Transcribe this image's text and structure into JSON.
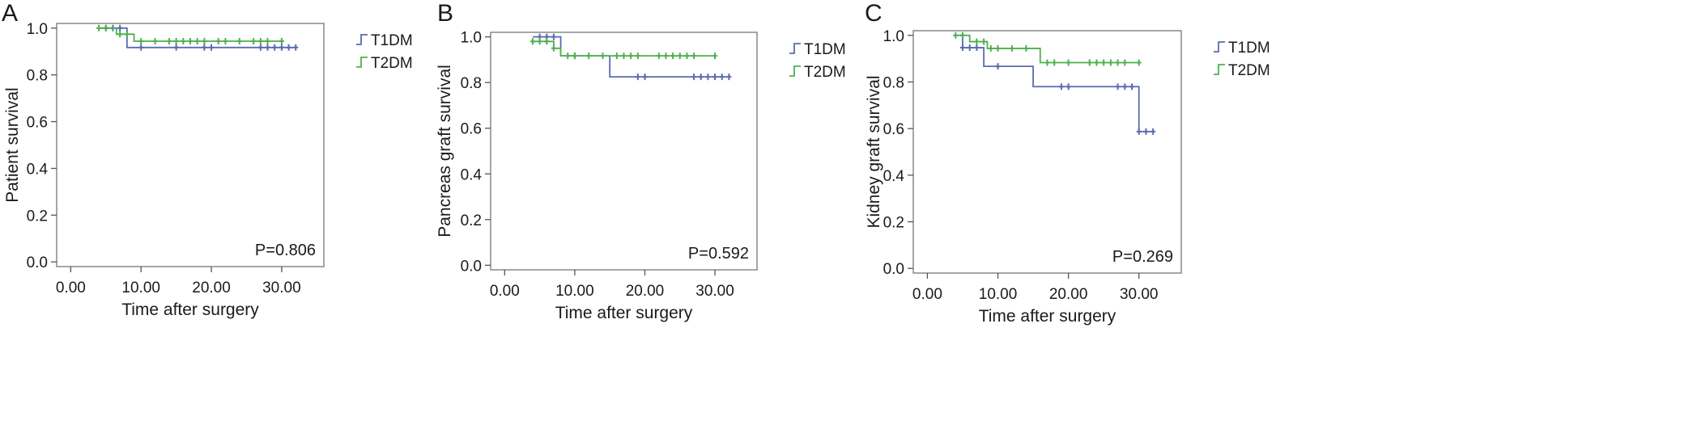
{
  "panels": [
    {
      "letter": "A",
      "ylabel": "Patient survival",
      "xlabel": "Time after surgery",
      "pvalue": "P=0.806",
      "xticks": [
        0,
        10,
        20,
        30
      ],
      "xtick_labels": [
        "0.00",
        "10.00",
        "20.00",
        "30.00"
      ],
      "yticks": [
        0,
        0.2,
        0.4,
        0.6,
        0.8,
        1.0
      ],
      "ytick_labels": [
        "0.0",
        "0.2",
        "0.4",
        "0.6",
        "0.8",
        "1.0"
      ],
      "legend": [
        "T1DM",
        "T2DM"
      ]
    },
    {
      "letter": "B",
      "ylabel": "Pancreas graft survival",
      "xlabel": "Time after surgery",
      "pvalue": "P=0.592",
      "xticks": [
        0,
        10,
        20,
        30
      ],
      "xtick_labels": [
        "0.00",
        "10.00",
        "20.00",
        "30.00"
      ],
      "yticks": [
        0,
        0.2,
        0.4,
        0.6,
        0.8,
        1.0
      ],
      "ytick_labels": [
        "0.0",
        "0.2",
        "0.4",
        "0.6",
        "0.8",
        "1.0"
      ],
      "legend": [
        "T1DM",
        "T2DM"
      ]
    },
    {
      "letter": "C",
      "ylabel": "Kidney graft survival",
      "xlabel": "Time after surgery",
      "pvalue": "P=0.269",
      "xticks": [
        0,
        10,
        20,
        30
      ],
      "xtick_labels": [
        "0.00",
        "10.00",
        "20.00",
        "30.00"
      ],
      "yticks": [
        0,
        0.2,
        0.4,
        0.6,
        0.8,
        1.0
      ],
      "ytick_labels": [
        "0.0",
        "0.2",
        "0.4",
        "0.6",
        "0.8",
        "1.0"
      ],
      "legend": [
        "T1DM",
        "T2DM"
      ]
    }
  ],
  "colors": {
    "T1DM": "#5a6bb0",
    "T2DM": "#4fb04f"
  },
  "chart_data": [
    {
      "type": "line",
      "title": "A",
      "xlabel": "Time after surgery",
      "ylabel": "Patient survival",
      "xlim": [
        -2,
        36
      ],
      "ylim": [
        -0.02,
        1.02
      ],
      "legend": "top-right",
      "series": [
        {
          "name": "T1DM",
          "steps": [
            [
              4,
              1.0
            ],
            [
              8,
              0.917
            ],
            [
              32,
              0.917
            ]
          ],
          "censored": [
            [
              5,
              1.0
            ],
            [
              6,
              1.0
            ],
            [
              7,
              1.0
            ],
            [
              10,
              0.917
            ],
            [
              15,
              0.917
            ],
            [
              19,
              0.917
            ],
            [
              20,
              0.917
            ],
            [
              27,
              0.917
            ],
            [
              28,
              0.917
            ],
            [
              29,
              0.917
            ],
            [
              30,
              0.917
            ],
            [
              31,
              0.917
            ],
            [
              32,
              0.917
            ]
          ]
        },
        {
          "name": "T2DM",
          "steps": [
            [
              4,
              1.0
            ],
            [
              6.5,
              0.974
            ],
            [
              9,
              0.944
            ],
            [
              30,
              0.944
            ]
          ],
          "censored": [
            [
              4,
              1.0
            ],
            [
              5,
              1.0
            ],
            [
              7,
              0.974
            ],
            [
              8,
              0.974
            ],
            [
              10,
              0.944
            ],
            [
              12,
              0.944
            ],
            [
              14,
              0.944
            ],
            [
              15,
              0.944
            ],
            [
              16,
              0.944
            ],
            [
              17,
              0.944
            ],
            [
              18,
              0.944
            ],
            [
              19,
              0.944
            ],
            [
              21,
              0.944
            ],
            [
              22,
              0.944
            ],
            [
              24,
              0.944
            ],
            [
              26,
              0.944
            ],
            [
              27,
              0.944
            ],
            [
              28,
              0.944
            ],
            [
              30,
              0.944
            ]
          ]
        }
      ]
    },
    {
      "type": "line",
      "title": "B",
      "xlabel": "Time after surgery",
      "ylabel": "Pancreas graft survival",
      "xlim": [
        -2,
        36
      ],
      "ylim": [
        -0.02,
        1.02
      ],
      "legend": "top-right",
      "series": [
        {
          "name": "T1DM",
          "steps": [
            [
              4,
              1.0
            ],
            [
              8,
              0.917
            ],
            [
              15,
              0.825
            ],
            [
              32,
              0.825
            ]
          ],
          "censored": [
            [
              5,
              1.0
            ],
            [
              6,
              1.0
            ],
            [
              7,
              1.0
            ],
            [
              10,
              0.917
            ],
            [
              19,
              0.825
            ],
            [
              20,
              0.825
            ],
            [
              27,
              0.825
            ],
            [
              28,
              0.825
            ],
            [
              29,
              0.825
            ],
            [
              30,
              0.825
            ],
            [
              31,
              0.825
            ],
            [
              32,
              0.825
            ]
          ]
        },
        {
          "name": "T2DM",
          "steps": [
            [
              4,
              0.98
            ],
            [
              7,
              0.95
            ],
            [
              8,
              0.917
            ],
            [
              30,
              0.917
            ]
          ],
          "censored": [
            [
              4,
              0.98
            ],
            [
              5,
              0.98
            ],
            [
              6,
              0.98
            ],
            [
              7,
              0.95
            ],
            [
              9,
              0.917
            ],
            [
              10,
              0.917
            ],
            [
              12,
              0.917
            ],
            [
              14,
              0.917
            ],
            [
              16,
              0.917
            ],
            [
              17,
              0.917
            ],
            [
              18,
              0.917
            ],
            [
              19,
              0.917
            ],
            [
              22,
              0.917
            ],
            [
              23,
              0.917
            ],
            [
              24,
              0.917
            ],
            [
              25,
              0.917
            ],
            [
              26,
              0.917
            ],
            [
              27,
              0.917
            ],
            [
              30,
              0.917
            ]
          ]
        }
      ]
    },
    {
      "type": "line",
      "title": "C",
      "xlabel": "Time after surgery",
      "ylabel": "Kidney graft survival",
      "xlim": [
        -2,
        36
      ],
      "ylim": [
        -0.02,
        1.02
      ],
      "legend": "top-right",
      "series": [
        {
          "name": "T1DM",
          "steps": [
            [
              4,
              1.0
            ],
            [
              5,
              0.947
            ],
            [
              8,
              0.867
            ],
            [
              15,
              0.78
            ],
            [
              30,
              0.587
            ],
            [
              32,
              0.587
            ]
          ],
          "censored": [
            [
              5,
              0.947
            ],
            [
              6,
              0.947
            ],
            [
              7,
              0.947
            ],
            [
              10,
              0.867
            ],
            [
              19,
              0.78
            ],
            [
              20,
              0.78
            ],
            [
              27,
              0.78
            ],
            [
              28,
              0.78
            ],
            [
              29,
              0.78
            ],
            [
              30,
              0.587
            ],
            [
              31,
              0.587
            ],
            [
              32,
              0.587
            ]
          ]
        },
        {
          "name": "T2DM",
          "steps": [
            [
              4,
              1.0
            ],
            [
              6,
              0.973
            ],
            [
              8.5,
              0.944
            ],
            [
              16,
              0.883
            ],
            [
              30,
              0.883
            ]
          ],
          "censored": [
            [
              4,
              1.0
            ],
            [
              5,
              1.0
            ],
            [
              7,
              0.973
            ],
            [
              8,
              0.973
            ],
            [
              9,
              0.944
            ],
            [
              10,
              0.944
            ],
            [
              12,
              0.944
            ],
            [
              14,
              0.944
            ],
            [
              17,
              0.883
            ],
            [
              18,
              0.883
            ],
            [
              20,
              0.883
            ],
            [
              23,
              0.883
            ],
            [
              24,
              0.883
            ],
            [
              25,
              0.883
            ],
            [
              26,
              0.883
            ],
            [
              27,
              0.883
            ],
            [
              28,
              0.883
            ],
            [
              30,
              0.883
            ]
          ]
        }
      ]
    }
  ]
}
